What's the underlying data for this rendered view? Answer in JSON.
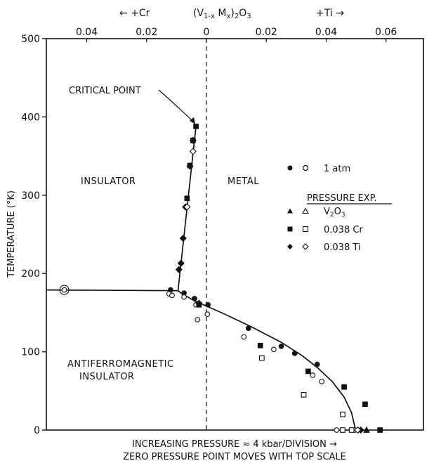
{
  "chart_data": {
    "type": "scatter",
    "header": {
      "cr_label": "← +Cr",
      "formula": "(V1-x Mx)2O3",
      "ti_label": "+Ti →"
    },
    "ylabel": "TEMPERATURE (°K)",
    "xlabel_line1": "INCREASING PRESSURE ≈ 4 kbar/DIVISION →",
    "xlabel_line2": "ZERO PRESSURE POINT MOVES WITH TOP SCALE",
    "top_axis": {
      "ticks": [
        {
          "value": -0.04,
          "label": "0.04"
        },
        {
          "value": -0.02,
          "label": "0.02"
        },
        {
          "value": 0,
          "label": "0"
        },
        {
          "value": 0.02,
          "label": "0.02"
        },
        {
          "value": 0.04,
          "label": "0.04"
        },
        {
          "value": 0.06,
          "label": "0.06"
        }
      ]
    },
    "xlim": [
      -0.0535,
      0.0725
    ],
    "ylim": [
      0,
      500
    ],
    "y_ticks": [
      0,
      100,
      200,
      300,
      400,
      500
    ],
    "dashed_line_x": 0,
    "regions": {
      "insulator": "INSULATOR",
      "metal": "METAL",
      "afm_line1": "ANTIFERROMAGNETIC",
      "afm_line2": "INSULATOR"
    },
    "annotation": {
      "text": "CRITICAL POINT",
      "target": {
        "x": -0.0035,
        "y": 388
      }
    },
    "legend": {
      "atm_label": "1 atm",
      "pressure_title": "PRESSURE EXP.",
      "entries": [
        {
          "label": "V2O3",
          "marker": "triangle"
        },
        {
          "label": "0.038 Cr",
          "marker": "square"
        },
        {
          "label": "0.038 Ti",
          "marker": "diamond"
        }
      ]
    },
    "boundaries": {
      "mi_line": [
        {
          "x": -0.0095,
          "y": 178
        },
        {
          "x": -0.0035,
          "y": 388
        }
      ],
      "afm_line": [
        {
          "x": -0.0535,
          "y": 179
        },
        {
          "x": -0.0095,
          "y": 178
        },
        {
          "x": -0.0085,
          "y": 175
        },
        {
          "x": -0.004,
          "y": 165
        },
        {
          "x": 0.005,
          "y": 150
        },
        {
          "x": 0.015,
          "y": 132
        },
        {
          "x": 0.025,
          "y": 112
        },
        {
          "x": 0.032,
          "y": 95
        },
        {
          "x": 0.037,
          "y": 80
        },
        {
          "x": 0.042,
          "y": 62
        },
        {
          "x": 0.046,
          "y": 42
        },
        {
          "x": 0.0485,
          "y": 22
        },
        {
          "x": 0.0498,
          "y": 0
        }
      ]
    },
    "series": [
      {
        "name": "1 atm",
        "marker": "circle",
        "filled": true,
        "points": [
          {
            "x": -0.012,
            "y": 179
          },
          {
            "x": -0.0075,
            "y": 175
          },
          {
            "x": -0.004,
            "y": 168
          },
          {
            "x": 0.0005,
            "y": 160
          },
          {
            "x": 0.014,
            "y": 130
          },
          {
            "x": 0.025,
            "y": 107
          },
          {
            "x": 0.0295,
            "y": 98
          },
          {
            "x": 0.037,
            "y": 84
          }
        ]
      },
      {
        "name": "1 atm",
        "marker": "circle",
        "filled": false,
        "points": [
          {
            "x": -0.0475,
            "y": 179
          },
          {
            "x": -0.0125,
            "y": 174
          },
          {
            "x": -0.0115,
            "y": 172
          },
          {
            "x": -0.0075,
            "y": 170
          },
          {
            "x": -0.0035,
            "y": 160
          },
          {
            "x": -0.003,
            "y": 141
          },
          {
            "x": 0.0003,
            "y": 148
          },
          {
            "x": 0.0125,
            "y": 119
          },
          {
            "x": 0.0225,
            "y": 103
          },
          {
            "x": 0.0355,
            "y": 70
          },
          {
            "x": 0.0385,
            "y": 62
          },
          {
            "x": 0.0435,
            "y": 0
          },
          {
            "x": 0.0495,
            "y": 0
          }
        ]
      },
      {
        "name": "V2O3",
        "marker": "triangle",
        "filled": true,
        "points": [
          {
            "x": 0.0535,
            "y": 0
          }
        ]
      },
      {
        "name": "0.038 Cr",
        "marker": "square",
        "filled": true,
        "points": [
          {
            "x": -0.0035,
            "y": 388
          },
          {
            "x": -0.0045,
            "y": 370
          },
          {
            "x": -0.0055,
            "y": 338
          },
          {
            "x": -0.0065,
            "y": 296
          },
          {
            "x": 0.018,
            "y": 108
          },
          {
            "x": 0.034,
            "y": 75
          },
          {
            "x": 0.046,
            "y": 55
          },
          {
            "x": 0.053,
            "y": 33
          },
          {
            "x": 0.058,
            "y": 0
          },
          {
            "x": -0.0025,
            "y": 160
          }
        ]
      },
      {
        "name": "0.038 Cr",
        "marker": "square",
        "filled": false,
        "points": [
          {
            "x": 0.0185,
            "y": 92
          },
          {
            "x": 0.0325,
            "y": 45
          },
          {
            "x": 0.0455,
            "y": 20
          },
          {
            "x": 0.0455,
            "y": 0
          },
          {
            "x": 0.0485,
            "y": 0
          }
        ]
      },
      {
        "name": "0.038 Ti",
        "marker": "diamond",
        "filled": true,
        "points": [
          {
            "x": -0.0045,
            "y": 370
          },
          {
            "x": -0.0055,
            "y": 337
          },
          {
            "x": -0.007,
            "y": 285
          },
          {
            "x": -0.0078,
            "y": 245
          },
          {
            "x": -0.0085,
            "y": 213
          },
          {
            "x": -0.0092,
            "y": 205
          },
          {
            "x": -0.0025,
            "y": 162
          },
          {
            "x": 0.0515,
            "y": 0
          }
        ]
      },
      {
        "name": "0.038 Ti",
        "marker": "diamond",
        "filled": false,
        "points": [
          {
            "x": -0.0045,
            "y": 356
          },
          {
            "x": -0.0065,
            "y": 285
          },
          {
            "x": 0.0505,
            "y": 0
          }
        ]
      }
    ]
  }
}
